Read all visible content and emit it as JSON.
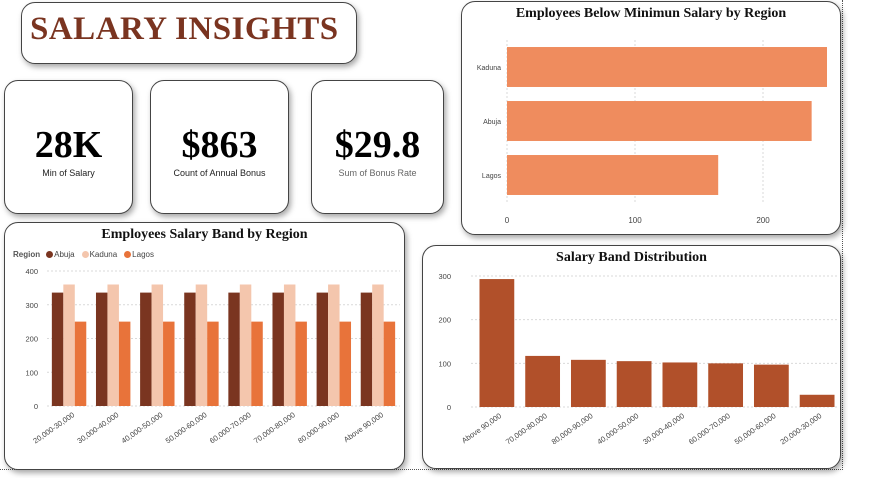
{
  "header": {
    "title": "SALARY INSIGHTS"
  },
  "kpis": [
    {
      "value": "28K",
      "label": "Min of Salary"
    },
    {
      "value": "$863",
      "label": "Count of Annual Bonus"
    },
    {
      "value": "$29.8",
      "label": "Sum of Bonus Rate"
    }
  ],
  "colors": {
    "abuja": "#7a3520",
    "kaduna": "#f4c6ad",
    "lagos": "#e8733a",
    "hbar": "#ef8c5e",
    "dist": "#b1502a",
    "title": "#7a3420"
  },
  "chart_data": [
    {
      "type": "bar",
      "orientation": "horizontal",
      "title": "Employees Below Minimun Salary by Region",
      "categories": [
        "Kaduna",
        "Abuja",
        "Lagos"
      ],
      "values": [
        250,
        238,
        165
      ],
      "xlim": [
        0,
        250
      ],
      "xticks": [
        0,
        100,
        200
      ],
      "grid": true
    },
    {
      "type": "bar",
      "title": "Employees Salary Band by Region",
      "legend_title": "Region",
      "legend_position": "top-left",
      "categories": [
        "20,000-30,000",
        "30,000-40,000",
        "40,000-50,000",
        "50,000-60,000",
        "60,000-70,000",
        "70,000-80,000",
        "80,000-90,000",
        "Above 90,000"
      ],
      "series": [
        {
          "name": "Abuja",
          "values": [
            336,
            336,
            336,
            336,
            336,
            336,
            336,
            336
          ]
        },
        {
          "name": "Kaduna",
          "values": [
            360,
            360,
            360,
            360,
            360,
            360,
            360,
            360
          ]
        },
        {
          "name": "Lagos",
          "values": [
            250,
            250,
            250,
            250,
            250,
            250,
            250,
            250
          ]
        }
      ],
      "ylim": [
        0,
        400
      ],
      "yticks": [
        0,
        100,
        200,
        300,
        400
      ],
      "grid": true
    },
    {
      "type": "bar",
      "title": "Salary Band Distribution",
      "categories": [
        "Above 90,000",
        "70,000-80,000",
        "80,000-90,000",
        "40,000-50,000",
        "30,000-40,000",
        "60,000-70,000",
        "50,000-60,000",
        "20,000-30,000"
      ],
      "values": [
        293,
        117,
        108,
        105,
        102,
        100,
        97,
        28
      ],
      "ylim": [
        0,
        300
      ],
      "yticks": [
        0,
        100,
        200,
        300
      ],
      "grid": true
    }
  ]
}
